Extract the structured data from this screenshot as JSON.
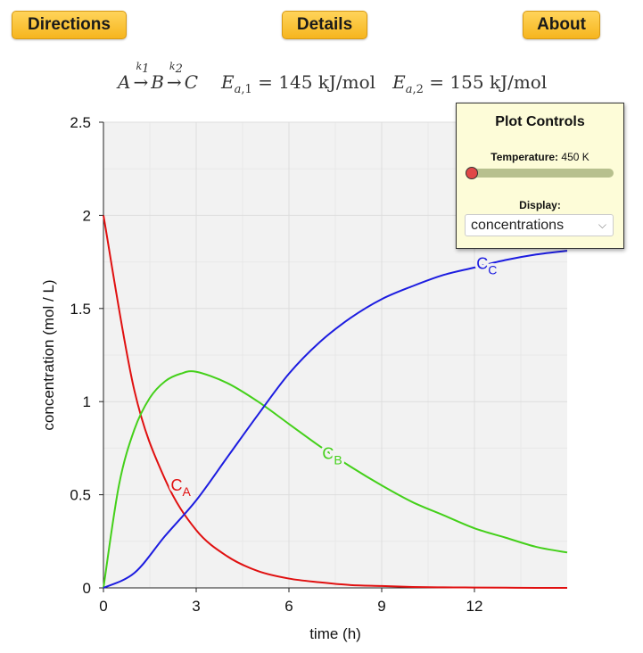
{
  "buttons": {
    "directions": "Directions",
    "details": "Details",
    "about": "About"
  },
  "equation": {
    "species": [
      "A",
      "B",
      "C"
    ],
    "rate_labels": [
      "k1",
      "k2"
    ],
    "ea1": "E_a,1 = 145 kJ/mol",
    "ea2": "E_a,2 = 155 kJ/mol",
    "ea1_value": "= 145 kJ/mol",
    "ea2_value": "= 155 kJ/mol"
  },
  "controls": {
    "title": "Plot Controls",
    "temperature_label": "Temperature:",
    "temperature_value": "450 K",
    "temperature_fraction": 0.0,
    "display_label": "Display:",
    "display_value": "concentrations"
  },
  "colors": {
    "A": "#e01010",
    "B": "#44d01a",
    "C": "#1c1ce0",
    "plot_bg": "#f2f2f2",
    "grid": "#dddddd"
  },
  "chart_data": {
    "type": "line",
    "xlabel": "time (h)",
    "ylabel": "concentration (mol / L)",
    "xlim": [
      0,
      15
    ],
    "ylim": [
      0,
      2.5
    ],
    "xticks": [
      0,
      3,
      6,
      9,
      12
    ],
    "yticks": [
      0,
      0.5,
      1,
      1.5,
      2,
      2.5
    ],
    "ytick_labels": [
      "0",
      "0.5",
      "1",
      "1.5",
      "2",
      "2.5"
    ],
    "series": [
      {
        "name": "CA",
        "x": [
          0,
          1,
          2,
          3,
          4,
          5,
          6,
          7,
          8,
          9,
          10,
          11,
          12,
          13,
          14,
          15
        ],
        "y": [
          2.0,
          1.06,
          0.58,
          0.31,
          0.17,
          0.09,
          0.05,
          0.03,
          0.015,
          0.01,
          0.005,
          0.003,
          0.002,
          0.001,
          0.0,
          0.0
        ]
      },
      {
        "name": "CB",
        "x": [
          0,
          0.5,
          1,
          1.5,
          2,
          2.5,
          3,
          4,
          5,
          6,
          7,
          8,
          9,
          10,
          11,
          12,
          13,
          14,
          15
        ],
        "y": [
          0,
          0.55,
          0.85,
          1.02,
          1.11,
          1.15,
          1.16,
          1.1,
          1.0,
          0.88,
          0.76,
          0.65,
          0.55,
          0.46,
          0.39,
          0.32,
          0.27,
          0.22,
          0.19
        ]
      },
      {
        "name": "CC",
        "x": [
          0,
          1,
          2,
          3,
          4,
          5,
          6,
          7,
          8,
          9,
          10,
          11,
          12,
          13,
          14,
          15
        ],
        "y": [
          0,
          0.08,
          0.28,
          0.47,
          0.7,
          0.93,
          1.15,
          1.32,
          1.45,
          1.55,
          1.62,
          1.68,
          1.72,
          1.76,
          1.79,
          1.81
        ]
      }
    ],
    "annotations": [
      {
        "series": "CA",
        "text": "C",
        "sub": "A"
      },
      {
        "series": "CB",
        "text": "C",
        "sub": "B"
      },
      {
        "series": "CC",
        "text": "C",
        "sub": "C"
      }
    ]
  }
}
